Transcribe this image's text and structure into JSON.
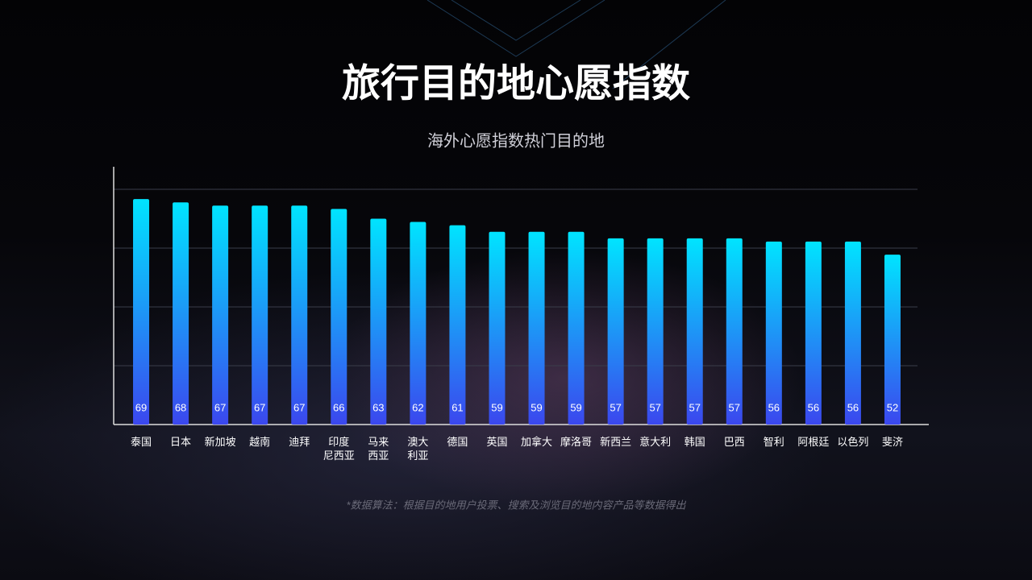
{
  "chart_data": {
    "type": "bar",
    "title": "旅行目的地心愿指数",
    "subtitle": "海外心愿指数热门目的地",
    "categories": [
      "泰国",
      "日本",
      "新加坡",
      "越南",
      "迪拜",
      "印度\n尼西亚",
      "马来\n西亚",
      "澳大\n利亚",
      "德国",
      "英国",
      "加拿大",
      "摩洛哥",
      "新西兰",
      "意大利",
      "韩国",
      "巴西",
      "智利",
      "阿根廷",
      "以色列",
      "斐济"
    ],
    "values": [
      69,
      68,
      67,
      67,
      67,
      66,
      63,
      62,
      61,
      59,
      59,
      59,
      57,
      57,
      57,
      57,
      56,
      56,
      56,
      52
    ],
    "ylim": [
      0,
      72
    ],
    "color": [
      "#00e4ff",
      "#3b47ee"
    ],
    "note": "*数据算法：根据目的地用户投票、搜索及浏览目的地内容产品等数据得出"
  }
}
